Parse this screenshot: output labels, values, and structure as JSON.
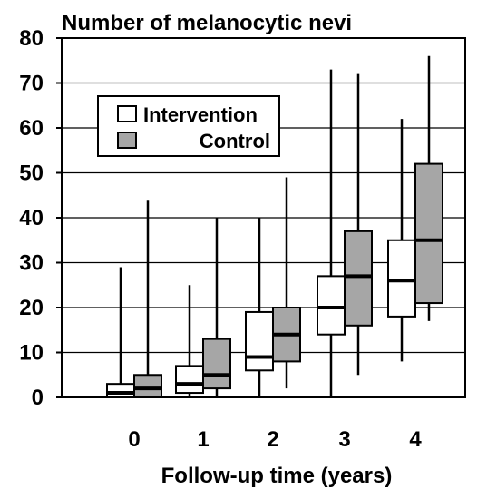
{
  "chart_data": {
    "type": "boxplot",
    "title": "Number of melanocytic nevi",
    "xlabel": "Follow-up time (years)",
    "ylabel": "",
    "categories": [
      "0",
      "1",
      "2",
      "3",
      "4"
    ],
    "ylim": [
      0,
      80
    ],
    "yticks": [
      0,
      10,
      20,
      30,
      40,
      50,
      60,
      70,
      80
    ],
    "grid": true,
    "legend_position": "top-left",
    "series": [
      {
        "name": "Intervention",
        "color": "#ffffff",
        "boxes": [
          {
            "min": 0,
            "q1": 0,
            "median": 1,
            "q3": 3,
            "max": 29
          },
          {
            "min": 0,
            "q1": 1,
            "median": 3,
            "q3": 7,
            "max": 25
          },
          {
            "min": 0,
            "q1": 6,
            "median": 9,
            "q3": 19,
            "max": 40
          },
          {
            "min": 0,
            "q1": 14,
            "median": 20,
            "q3": 27,
            "max": 73
          },
          {
            "min": 8,
            "q1": 18,
            "median": 26,
            "q3": 35,
            "max": 62
          }
        ]
      },
      {
        "name": "Control",
        "color": "#a6a6a6",
        "boxes": [
          {
            "min": 0,
            "q1": 0,
            "median": 2,
            "q3": 5,
            "max": 44
          },
          {
            "min": 0,
            "q1": 2,
            "median": 5,
            "q3": 13,
            "max": 40
          },
          {
            "min": 2,
            "q1": 8,
            "median": 14,
            "q3": 20,
            "max": 49
          },
          {
            "min": 5,
            "q1": 16,
            "median": 27,
            "q3": 37,
            "max": 72
          },
          {
            "min": 17,
            "q1": 21,
            "median": 35,
            "q3": 52,
            "max": 76
          }
        ]
      }
    ]
  }
}
